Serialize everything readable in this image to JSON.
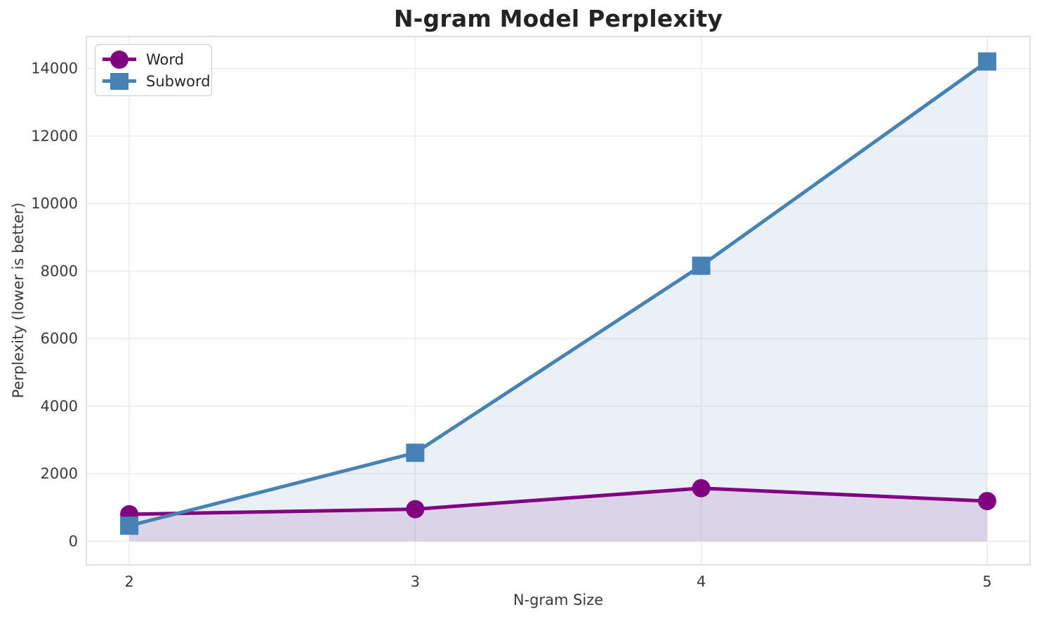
{
  "chart_data": {
    "type": "line",
    "title": "N-gram Model Perplexity",
    "xlabel": "N-gram Size",
    "ylabel": "Perplexity (lower is better)",
    "x": [
      2,
      3,
      4,
      5
    ],
    "series": [
      {
        "name": "Word",
        "values": [
          800,
          950,
          1570,
          1190
        ],
        "color": "#800080",
        "marker": "circle",
        "fill_to_zero": true,
        "fill_opacity": 0.12
      },
      {
        "name": "Subword",
        "values": [
          460,
          2620,
          8160,
          14210
        ],
        "color": "#4682B4",
        "marker": "square",
        "fill_to_zero": true,
        "fill_opacity": 0.12
      }
    ],
    "xticks": [
      "2",
      "3",
      "4",
      "5"
    ],
    "xtick_values": [
      2,
      3,
      4,
      5
    ],
    "yticks": [
      "0",
      "2000",
      "4000",
      "6000",
      "8000",
      "10000",
      "12000",
      "14000"
    ],
    "ytick_values": [
      0,
      2000,
      4000,
      6000,
      8000,
      10000,
      12000,
      14000
    ],
    "xlim": [
      1.85,
      5.15
    ],
    "ylim": [
      -700,
      14950
    ],
    "grid": true,
    "legend_position": "upper left"
  },
  "style": {
    "grid_color": "#eaeaea",
    "spine_color": "#d8d8d8",
    "tick_label_color": "#3a3a3a",
    "title_color": "#242424",
    "line_width": 5,
    "marker_radius": 13
  }
}
